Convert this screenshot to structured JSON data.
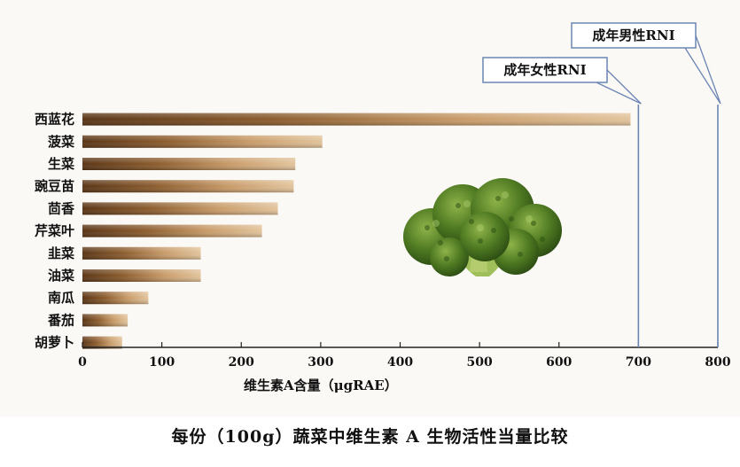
{
  "caption": "每份（100g）蔬菜中维生素 A 生物活性当量比较",
  "chart_data": {
    "type": "bar",
    "orientation": "horizontal",
    "categories": [
      "西蓝花",
      "菠菜",
      "生菜",
      "豌豆苗",
      "茴香",
      "芹菜叶",
      "韭菜",
      "油菜",
      "南瓜",
      "番茄",
      "胡萝卜"
    ],
    "values": [
      690,
      302,
      268,
      266,
      246,
      226,
      149,
      149,
      83,
      57,
      50
    ],
    "xlabel": "维生素A含量（μgRAE）",
    "xlim": [
      0,
      800
    ],
    "xticks": [
      "0",
      "100",
      "200",
      "300",
      "400",
      "500",
      "600",
      "700",
      "800"
    ],
    "reference_lines": [
      {
        "label": "成年女性RNI",
        "value": 700
      },
      {
        "label": "成年男性RNI",
        "value": 800
      }
    ],
    "grid": false,
    "bar_color": "#8a5a2b",
    "illustration": "broccoli"
  }
}
